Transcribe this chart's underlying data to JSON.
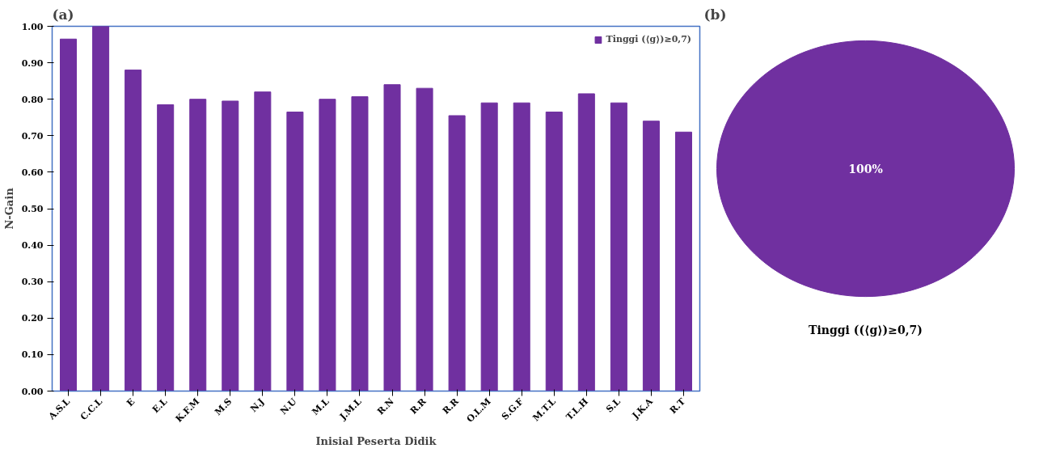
{
  "chart_data": [
    {
      "type": "bar",
      "title": "(a)",
      "xlabel": "Inisial Peserta Didik",
      "ylabel": "N-Gain",
      "categories": [
        "A.S.L",
        "C.C.L",
        "E",
        "E.L",
        "K.F.M",
        "M.S",
        "N.J",
        "N.U",
        "M.L",
        "J.M.L",
        "R.N",
        "R.R",
        "R.R",
        "O.L.M",
        "S.G.F",
        "M.T.L",
        "T.L.H",
        "S.L",
        "J.K.A",
        "R.T"
      ],
      "series": [
        {
          "name": "Tinggi (⟨g⟩)≥0,7)",
          "color": "#7030a0",
          "values": [
            0.965,
            1.0,
            0.88,
            0.785,
            0.8,
            0.795,
            0.82,
            0.765,
            0.8,
            0.807,
            0.84,
            0.83,
            0.755,
            0.79,
            0.79,
            0.765,
            0.815,
            0.79,
            0.74,
            0.71
          ]
        }
      ],
      "ylim": [
        0,
        1
      ],
      "yticks": [
        {
          "value": 0,
          "label": "0.00"
        },
        {
          "value": 0.1,
          "label": "0.10"
        },
        {
          "value": 0.2,
          "label": "0.20"
        },
        {
          "value": 0.3,
          "label": "0.30"
        },
        {
          "value": 0.4,
          "label": "0.40"
        },
        {
          "value": 0.5,
          "label": "0.50"
        },
        {
          "value": 0.6,
          "label": "0.60"
        },
        {
          "value": 0.7,
          "label": "0.70"
        },
        {
          "value": 0.8,
          "label": "0.80"
        },
        {
          "value": 0.9,
          "label": "0.90"
        },
        {
          "value": 1,
          "label": "1.00"
        }
      ],
      "grid": false,
      "legend": "top right"
    },
    {
      "type": "pie",
      "title": "(b)",
      "categories": [
        "Tinggi ((⟨g⟩)≥0,7)"
      ],
      "values": [
        100
      ],
      "colors": [
        "#7030a0"
      ],
      "value_labels": [
        "100%"
      ]
    }
  ]
}
